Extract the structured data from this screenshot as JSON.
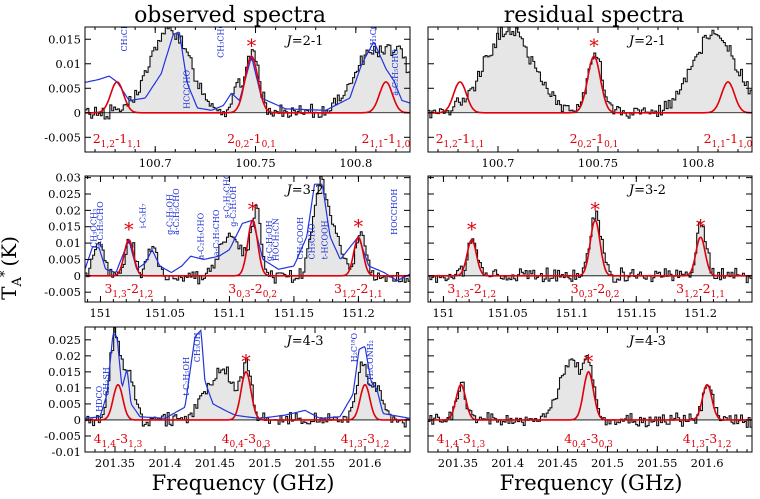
{
  "figure": {
    "col_titles": [
      "observed spectra",
      "residual spectra"
    ],
    "xlabel": "Frequency (GHz)",
    "ylabel": "T",
    "ylabel_sub": "A",
    "ylabel_sup": "*",
    "ylabel_unit": "(K)"
  },
  "chart_data": [
    {
      "type": "line",
      "panel": "observed J=2-1",
      "transition": "J=2-1",
      "xlim": [
        100.665,
        100.827
      ],
      "ylim": [
        -0.008,
        0.0175
      ],
      "xticks": [
        100.7,
        100.75,
        100.8
      ],
      "xtick_labels": [
        "100.7",
        "100.75",
        "100.8"
      ],
      "yticks": [
        -0.005,
        0,
        0.005,
        0.01,
        0.015
      ],
      "ytick_labels": [
        "-0.005",
        "0",
        "0.005",
        "0.01",
        "0.015"
      ],
      "model_lines": [
        {
          "x": 100.681,
          "peak": 0.0063,
          "width": 0.0032,
          "label": "2",
          "sub": "1,2",
          "label2": "-1",
          "sub2": "1,1",
          "star": false
        },
        {
          "x": 100.748,
          "peak": 0.0115,
          "width": 0.0032,
          "label": "2",
          "sub": "0,2",
          "label2": "-1",
          "sub2": "0,1",
          "star": true
        },
        {
          "x": 100.815,
          "peak": 0.0063,
          "width": 0.0032,
          "label": "2",
          "sub": "1,1",
          "label2": "-1",
          "sub2": "1,0",
          "star": false
        }
      ],
      "observed_features": [
        {
          "x": 100.707,
          "peak": 0.017,
          "width": 0.01
        },
        {
          "x": 100.74,
          "peak": 0.005,
          "width": 0.002
        },
        {
          "x": 100.748,
          "peak": 0.0125,
          "width": 0.0033
        },
        {
          "x": 100.807,
          "peak": 0.012,
          "width": 0.009
        },
        {
          "x": 100.822,
          "peak": 0.009,
          "width": 0.006
        }
      ],
      "blend_curve": [
        {
          "x": 100.665,
          "y": 0.0062
        },
        {
          "x": 100.672,
          "y": 0.0068
        },
        {
          "x": 100.677,
          "y": 0.0075
        },
        {
          "x": 100.681,
          "y": 0.0063
        },
        {
          "x": 100.687,
          "y": 0.0025
        },
        {
          "x": 100.695,
          "y": 0.003
        },
        {
          "x": 100.703,
          "y": 0.008
        },
        {
          "x": 100.709,
          "y": 0.016
        },
        {
          "x": 100.712,
          "y": 0.0165
        },
        {
          "x": 100.716,
          "y": 0.006
        },
        {
          "x": 100.721,
          "y": 0.001
        },
        {
          "x": 100.728,
          "y": 0.0005
        },
        {
          "x": 100.734,
          "y": 0.0015
        },
        {
          "x": 100.738,
          "y": 0.004
        },
        {
          "x": 100.742,
          "y": 0.0025
        },
        {
          "x": 100.748,
          "y": 0.0115
        },
        {
          "x": 100.753,
          "y": 0.003
        },
        {
          "x": 100.765,
          "y": 0.0008
        },
        {
          "x": 100.785,
          "y": 0.0005
        },
        {
          "x": 100.797,
          "y": 0.003
        },
        {
          "x": 100.803,
          "y": 0.01
        },
        {
          "x": 100.809,
          "y": 0.0145
        },
        {
          "x": 100.815,
          "y": 0.009
        },
        {
          "x": 100.819,
          "y": 0.0065
        },
        {
          "x": 100.823,
          "y": 0.0025
        },
        {
          "x": 100.827,
          "y": 0.002
        }
      ],
      "molecules": [
        {
          "name": "CH₃CHO",
          "x": 100.686,
          "y": 0.0125
        },
        {
          "name": "HCCCHO",
          "x": 100.717,
          "y": 0.0008
        },
        {
          "name": "CH₃CHO",
          "x": 100.734,
          "y": 0.0112
        },
        {
          "name": "CH₃COOH",
          "x": 100.81,
          "y": 0.0125
        },
        {
          "name": "a-C₂H₅CHO",
          "x": 100.821,
          "y": 0.0035
        }
      ]
    },
    {
      "type": "line",
      "panel": "residual J=2-1",
      "transition": "J=2-1",
      "xlim": [
        100.665,
        100.827
      ],
      "ylim": [
        -0.008,
        0.0175
      ],
      "xticks": [
        100.7,
        100.75,
        100.8
      ],
      "xtick_labels": [
        "100.7",
        "100.75",
        "100.8"
      ],
      "model_lines": [
        {
          "x": 100.681,
          "peak": 0.0063,
          "width": 0.0032,
          "label": "2",
          "sub": "1,2",
          "label2": "-1",
          "sub2": "1,1",
          "star": false
        },
        {
          "x": 100.748,
          "peak": 0.0115,
          "width": 0.0032,
          "label": "2",
          "sub": "0,2",
          "label2": "-1",
          "sub2": "0,1",
          "star": true
        },
        {
          "x": 100.815,
          "peak": 0.0063,
          "width": 0.0032,
          "label": "2",
          "sub": "1,1",
          "label2": "-1",
          "sub2": "1,0",
          "star": false
        }
      ],
      "observed_features": [
        {
          "x": 100.705,
          "peak": 0.017,
          "width": 0.012
        },
        {
          "x": 100.748,
          "peak": 0.0128,
          "width": 0.0034
        },
        {
          "x": 100.808,
          "peak": 0.016,
          "width": 0.011
        }
      ]
    },
    {
      "type": "line",
      "panel": "observed J=3-2",
      "transition": "J=3-2",
      "xlim": [
        150.988,
        151.24
      ],
      "ylim": [
        -0.008,
        0.0305
      ],
      "xticks": [
        151,
        151.05,
        151.1,
        151.15,
        151.2
      ],
      "xtick_labels": [
        "151",
        "151.05",
        "151.1",
        "151.15",
        "151.2"
      ],
      "yticks": [
        -0.005,
        0,
        0.005,
        0.01,
        0.015,
        0.02,
        0.025,
        0.03
      ],
      "ytick_labels": [
        "-0.005",
        "0",
        "0.005",
        "0.01",
        "0.015",
        "0.02",
        "0.025",
        "0.03"
      ],
      "model_lines": [
        {
          "x": 151.022,
          "peak": 0.011,
          "width": 0.0036,
          "label": "3",
          "sub": "1,3",
          "label2": "-2",
          "sub2": "1,2",
          "star": true
        },
        {
          "x": 151.118,
          "peak": 0.017,
          "width": 0.0038,
          "label": "3",
          "sub": "0,3",
          "label2": "-2",
          "sub2": "0,2",
          "star": true
        },
        {
          "x": 151.2,
          "peak": 0.0118,
          "width": 0.0036,
          "label": "3",
          "sub": "1,2",
          "label2": "-2",
          "sub2": "1,1",
          "star": true
        }
      ],
      "observed_features": [
        {
          "x": 150.998,
          "peak": 0.011,
          "width": 0.004
        },
        {
          "x": 151.022,
          "peak": 0.011,
          "width": 0.0036
        },
        {
          "x": 151.04,
          "peak": 0.009,
          "width": 0.004
        },
        {
          "x": 151.1,
          "peak": 0.013,
          "width": 0.008
        },
        {
          "x": 151.12,
          "peak": 0.019,
          "width": 0.004
        },
        {
          "x": 151.17,
          "peak": 0.028,
          "width": 0.006
        },
        {
          "x": 151.183,
          "peak": 0.01,
          "width": 0.005
        },
        {
          "x": 151.201,
          "peak": 0.014,
          "width": 0.0036
        }
      ],
      "blend_curve": [
        {
          "x": 150.988,
          "y": 0.002
        },
        {
          "x": 150.994,
          "y": 0.009
        },
        {
          "x": 150.999,
          "y": 0.0085
        },
        {
          "x": 151.004,
          "y": 0.002
        },
        {
          "x": 151.012,
          "y": 0.001
        },
        {
          "x": 151.022,
          "y": 0.011
        },
        {
          "x": 151.028,
          "y": 0.002
        },
        {
          "x": 151.035,
          "y": 0.004
        },
        {
          "x": 151.04,
          "y": 0.008
        },
        {
          "x": 151.046,
          "y": 0.003
        },
        {
          "x": 151.055,
          "y": 0.001
        },
        {
          "x": 151.063,
          "y": 0.003
        },
        {
          "x": 151.07,
          "y": 0.006
        },
        {
          "x": 151.08,
          "y": 0.005
        },
        {
          "x": 151.092,
          "y": 0.006
        },
        {
          "x": 151.1,
          "y": 0.008
        },
        {
          "x": 151.11,
          "y": 0.016
        },
        {
          "x": 151.118,
          "y": 0.017
        },
        {
          "x": 151.126,
          "y": 0.005
        },
        {
          "x": 151.138,
          "y": 0.002
        },
        {
          "x": 151.15,
          "y": 0.003
        },
        {
          "x": 151.16,
          "y": 0.012
        },
        {
          "x": 151.166,
          "y": 0.028
        },
        {
          "x": 151.172,
          "y": 0.028
        },
        {
          "x": 151.178,
          "y": 0.012
        },
        {
          "x": 151.186,
          "y": 0.005
        },
        {
          "x": 151.2,
          "y": 0.012
        },
        {
          "x": 151.208,
          "y": 0.003
        },
        {
          "x": 151.22,
          "y": 0.001
        },
        {
          "x": 151.23,
          "y": -0.0015
        },
        {
          "x": 151.24,
          "y": 0.0005
        }
      ],
      "molecules": [
        {
          "name": "CH₃OCH₃",
          "x": 150.997,
          "y": 0.0085
        },
        {
          "name": "a-C₂H₅CHO",
          "x": 151.002,
          "y": 0.0085
        },
        {
          "name": "i-C₃H₇",
          "x": 151.035,
          "y": 0.0145
        },
        {
          "name": "g-C₂H₅OH",
          "x": 151.056,
          "y": 0.0125
        },
        {
          "name": "a-C₂H₅CHO",
          "x": 151.061,
          "y": 0.0125
        },
        {
          "name": "a-C₂H₅CHO",
          "x": 151.08,
          "y": 0.005
        },
        {
          "name": "a-C₂H₅CHO",
          "x": 151.092,
          "y": 0.006
        },
        {
          "name": "s-C₂H₅CHO",
          "x": 151.1,
          "y": 0.0175
        },
        {
          "name": "g-C₂H₅OH",
          "x": 151.105,
          "y": 0.015
        },
        {
          "name": "g-C₂H₅OH",
          "x": 151.133,
          "y": 0.0045
        },
        {
          "name": "HOCH₂CN",
          "x": 151.138,
          "y": 0.0045
        },
        {
          "name": "CH₃COOH",
          "x": 151.157,
          "y": 0.005
        },
        {
          "name": "CH₃CHO",
          "x": 151.166,
          "y": 0.005
        },
        {
          "name": "t-HCOOH",
          "x": 151.176,
          "y": 0.005
        },
        {
          "name": "HOCCHOH",
          "x": 151.23,
          "y": 0.0125
        }
      ]
    },
    {
      "type": "line",
      "panel": "residual J=3-2",
      "transition": "J=3-2",
      "xlim": [
        150.988,
        151.24
      ],
      "ylim": [
        -0.008,
        0.0305
      ],
      "xticks": [
        151,
        151.05,
        151.1,
        151.15,
        151.2
      ],
      "xtick_labels": [
        "151",
        "151.05",
        "151.1",
        "151.15",
        "151.2"
      ],
      "model_lines": [
        {
          "x": 151.022,
          "peak": 0.011,
          "width": 0.0036,
          "label": "3",
          "sub": "1,3",
          "label2": "-2",
          "sub2": "1,2",
          "star": true
        },
        {
          "x": 151.118,
          "peak": 0.017,
          "width": 0.0038,
          "label": "3",
          "sub": "0,3",
          "label2": "-2",
          "sub2": "0,2",
          "star": true
        },
        {
          "x": 151.2,
          "peak": 0.0118,
          "width": 0.0036,
          "label": "3",
          "sub": "1,2",
          "label2": "-2",
          "sub2": "1,1",
          "star": true
        }
      ],
      "observed_features": [
        {
          "x": 151.022,
          "peak": 0.011,
          "width": 0.0036
        },
        {
          "x": 151.118,
          "peak": 0.02,
          "width": 0.0042
        },
        {
          "x": 151.2,
          "peak": 0.016,
          "width": 0.0038
        }
      ]
    },
    {
      "type": "line",
      "panel": "observed J=4-3",
      "transition": "J=4-3",
      "xlim": [
        201.32,
        201.645
      ],
      "ylim": [
        -0.01,
        0.029
      ],
      "xticks": [
        201.35,
        201.4,
        201.45,
        201.5,
        201.55,
        201.6
      ],
      "xtick_labels": [
        "201.35",
        "201.4",
        "201.45",
        "201.5",
        "201.55",
        "201.6"
      ],
      "yticks": [
        -0.01,
        -0.005,
        0,
        0.005,
        0.01,
        0.015,
        0.02,
        0.025
      ],
      "ytick_labels": [
        "-0.01",
        "-0.005",
        "0",
        "0.005",
        "0.01",
        "0.015",
        "0.02",
        "0.025"
      ],
      "model_lines": [
        {
          "x": 201.353,
          "peak": 0.011,
          "width": 0.0048,
          "label": "4",
          "sub": "1,4",
          "label2": "-3",
          "sub2": "1,3",
          "star": false
        },
        {
          "x": 201.481,
          "peak": 0.015,
          "width": 0.005,
          "label": "4",
          "sub": "0,4",
          "label2": "-3",
          "sub2": "0,3",
          "star": true
        },
        {
          "x": 201.6,
          "peak": 0.011,
          "width": 0.0048,
          "label": "4",
          "sub": "1,3",
          "label2": "-3",
          "sub2": "1,2",
          "star": false
        }
      ],
      "observed_features": [
        {
          "x": 201.35,
          "peak": 0.027,
          "width": 0.006
        },
        {
          "x": 201.364,
          "peak": 0.012,
          "width": 0.005
        },
        {
          "x": 201.455,
          "peak": 0.016,
          "width": 0.014
        },
        {
          "x": 201.481,
          "peak": 0.014,
          "width": 0.005
        },
        {
          "x": 201.597,
          "peak": 0.018,
          "width": 0.006
        },
        {
          "x": 201.612,
          "peak": 0.01,
          "width": 0.005
        }
      ],
      "blend_curve": [
        {
          "x": 201.32,
          "y": 0.0005
        },
        {
          "x": 201.335,
          "y": 0.001
        },
        {
          "x": 201.342,
          "y": 0.008
        },
        {
          "x": 201.348,
          "y": 0.027
        },
        {
          "x": 201.352,
          "y": 0.026
        },
        {
          "x": 201.357,
          "y": 0.01
        },
        {
          "x": 201.362,
          "y": 0.016
        },
        {
          "x": 201.366,
          "y": 0.005
        },
        {
          "x": 201.375,
          "y": 0.001
        },
        {
          "x": 201.4,
          "y": 0.0005
        },
        {
          "x": 201.42,
          "y": 0.004
        },
        {
          "x": 201.43,
          "y": 0.026
        },
        {
          "x": 201.436,
          "y": 0.028
        },
        {
          "x": 201.44,
          "y": 0.012
        },
        {
          "x": 201.448,
          "y": 0.005
        },
        {
          "x": 201.46,
          "y": 0.003
        },
        {
          "x": 201.47,
          "y": 0.0015
        },
        {
          "x": 201.481,
          "y": 0.001
        },
        {
          "x": 201.495,
          "y": 0.0005
        },
        {
          "x": 201.52,
          "y": 0.0015
        },
        {
          "x": 201.54,
          "y": 0.003
        },
        {
          "x": 201.555,
          "y": 0.0005
        },
        {
          "x": 201.575,
          "y": 0.001
        },
        {
          "x": 201.588,
          "y": 0.008
        },
        {
          "x": 201.594,
          "y": 0.022
        },
        {
          "x": 201.6,
          "y": 0.023
        },
        {
          "x": 201.606,
          "y": 0.012
        },
        {
          "x": 201.612,
          "y": 0.0095
        },
        {
          "x": 201.618,
          "y": 0.002
        },
        {
          "x": 201.645,
          "y": 0.0005
        }
      ],
      "molecules": [
        {
          "name": "HDCO",
          "x": 201.337,
          "y": 0.0025
        },
        {
          "name": "CH₃SH",
          "x": 201.344,
          "y": 0.0075
        },
        {
          "name": "t-C₂H₅OH",
          "x": 201.424,
          "y": 0.0075
        },
        {
          "name": "CH₃OH",
          "x": 201.435,
          "y": 0.018
        },
        {
          "name": "H₂C¹⁸O",
          "x": 201.592,
          "y": 0.018
        },
        {
          "name": "CH₃CONH₂",
          "x": 201.608,
          "y": 0.0105
        }
      ]
    },
    {
      "type": "line",
      "panel": "residual J=4-3",
      "transition": "J=4-3",
      "xlim": [
        201.32,
        201.645
      ],
      "ylim": [
        -0.01,
        0.029
      ],
      "xticks": [
        201.35,
        201.4,
        201.45,
        201.5,
        201.55,
        201.6
      ],
      "xtick_labels": [
        "201.35",
        "201.4",
        "201.45",
        "201.5",
        "201.55",
        "201.6"
      ],
      "model_lines": [
        {
          "x": 201.353,
          "peak": 0.011,
          "width": 0.0048,
          "label": "4",
          "sub": "1,4",
          "label2": "-3",
          "sub2": "1,3",
          "star": false
        },
        {
          "x": 201.481,
          "peak": 0.015,
          "width": 0.005,
          "label": "4",
          "sub": "0,4",
          "label2": "-3",
          "sub2": "0,3",
          "star": true
        },
        {
          "x": 201.6,
          "peak": 0.011,
          "width": 0.0048,
          "label": "4",
          "sub": "1,3",
          "label2": "-3",
          "sub2": "1,2",
          "star": false
        }
      ],
      "observed_features": [
        {
          "x": 201.352,
          "peak": 0.011,
          "width": 0.005
        },
        {
          "x": 201.463,
          "peak": 0.017,
          "width": 0.013
        },
        {
          "x": 201.481,
          "peak": 0.012,
          "width": 0.005
        },
        {
          "x": 201.6,
          "peak": 0.011,
          "width": 0.005
        }
      ]
    }
  ]
}
